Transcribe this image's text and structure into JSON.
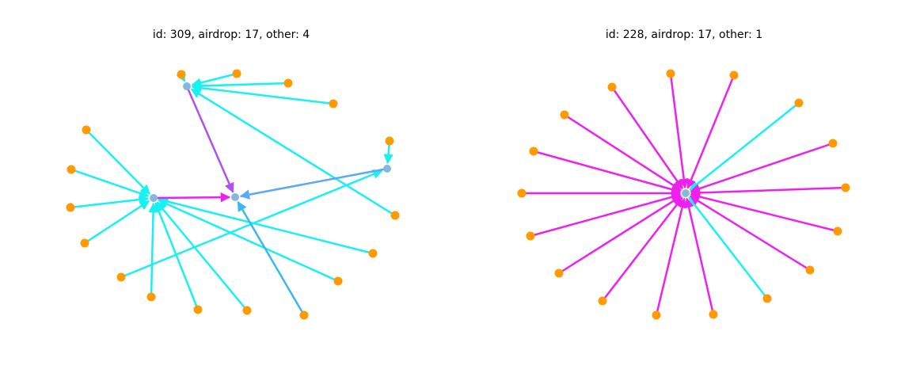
{
  "graphs": [
    {
      "title": "id: 309, airdrop: 17, other: 4"
    },
    {
      "title": "id: 228, airdrop: 17, other: 1"
    }
  ]
}
